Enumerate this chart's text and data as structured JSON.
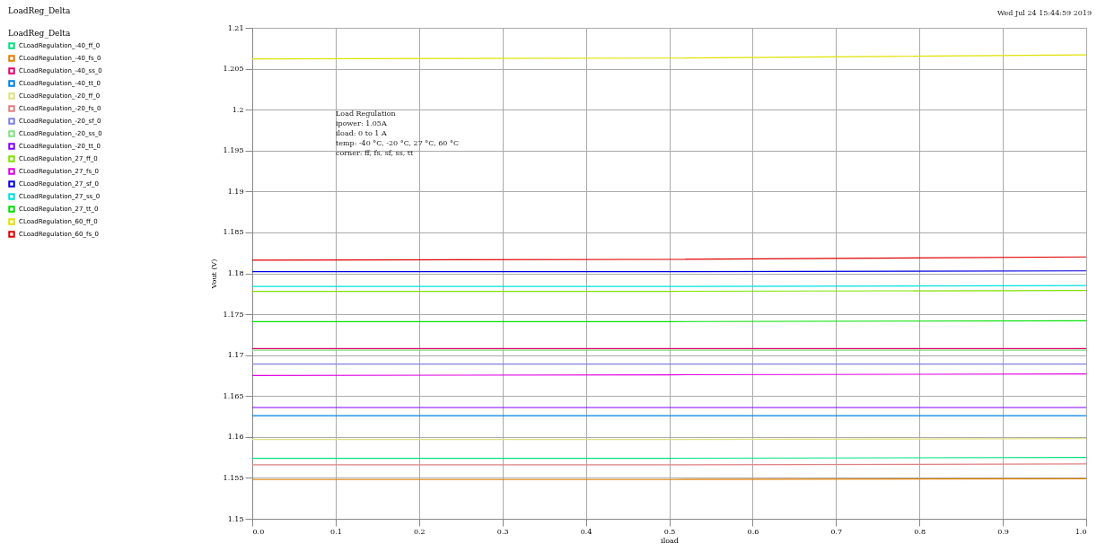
{
  "chart_data": {
    "type": "line",
    "title": "LoadReg_Delta",
    "xlabel": "iload",
    "ylabel": "Vout (V)",
    "legend_title": "LoadReg_Delta",
    "annotations": [
      "Wed Jul 24 15:44:59 2019",
      "Load Regulation\n\nipower: 1.05A\niload: 0 to 1 A\ntemp: -40 °C, -20 °C, 27 °C, 60 °C\ncorner: ff, fs, sf, ss, tt"
    ],
    "x": [
      0,
      0.5,
      1
    ],
    "xlim": [
      0,
      1
    ],
    "xticks": [
      {
        "value": 0,
        "label": "0.0"
      },
      0.1,
      0.2,
      0.3,
      0.4,
      0.5,
      0.6,
      0.7,
      0.8,
      0.9,
      {
        "value": 1,
        "label": "1.0"
      }
    ],
    "ylim": [
      1.15,
      1.21
    ],
    "yticks": [
      1.15,
      1.155,
      1.16,
      1.165,
      1.17,
      1.175,
      1.18,
      1.185,
      1.19,
      1.195,
      1.2,
      1.205,
      1.21
    ],
    "grid": true,
    "legend": "left",
    "line_style": "solid",
    "marker": "none",
    "series": [
      {
        "name": "CLoadRegulation_-40_ff_0",
        "color": "#00e080",
        "values": [
          1.1574,
          1.1574,
          1.1575
        ]
      },
      {
        "name": "CLoadRegulation_-40_fs_0",
        "color": "#e08000",
        "values": [
          1.1548,
          1.1548,
          1.1549
        ]
      },
      {
        "name": "CLoadRegulation_-40_ss_0",
        "color": "#e0006f",
        "values": [
          1.1708,
          1.1708,
          1.1708
        ]
      },
      {
        "name": "CLoadRegulation_-40_tt_0",
        "color": "#0080e0",
        "values": [
          1.1626,
          1.1626,
          1.1626
        ]
      },
      {
        "name": "CLoadRegulation_-20_ff_0",
        "color": "#e0e080",
        "values": [
          1.1597,
          1.1597,
          1.1598
        ]
      },
      {
        "name": "CLoadRegulation_-20_fs_0",
        "color": "#e08080",
        "values": [
          1.1566,
          1.1566,
          1.1567
        ]
      },
      {
        "name": "CLoadRegulation_-20_sf_0",
        "color": "#8080e0",
        "values": [
          1.1689,
          1.1689,
          1.1689
        ]
      },
      {
        "name": "CLoadRegulation_-20_ss_0",
        "color": "#80e080",
        "values": [
          1.1706,
          1.1706,
          1.1706
        ]
      },
      {
        "name": "CLoadRegulation_-20_tt_0",
        "color": "#8000ff",
        "values": [
          1.1636,
          1.1636,
          1.1636
        ]
      },
      {
        "name": "CLoadRegulation_27_ff_0",
        "color": "#80e000",
        "values": [
          1.1778,
          1.1778,
          1.1779
        ]
      },
      {
        "name": "CLoadRegulation_27_fs_0",
        "color": "#e000e0",
        "values": [
          1.1675,
          1.1676,
          1.1677
        ]
      },
      {
        "name": "CLoadRegulation_27_sf_0",
        "color": "#0000e0",
        "values": [
          1.1802,
          1.1802,
          1.1803
        ]
      },
      {
        "name": "CLoadRegulation_27_ss_0",
        "color": "#00e0e0",
        "values": [
          1.1784,
          1.1784,
          1.1785
        ]
      },
      {
        "name": "CLoadRegulation_27_tt_0",
        "color": "#00e000",
        "values": [
          1.1741,
          1.1741,
          1.1742
        ]
      },
      {
        "name": "CLoadRegulation_60_ff_0",
        "color": "#e0e000",
        "values": [
          1.2062,
          1.2063,
          1.2067
        ]
      },
      {
        "name": "CLoadRegulation_60_fs_0",
        "color": "#e00000",
        "values": [
          1.1816,
          1.1817,
          1.182
        ]
      }
    ]
  }
}
